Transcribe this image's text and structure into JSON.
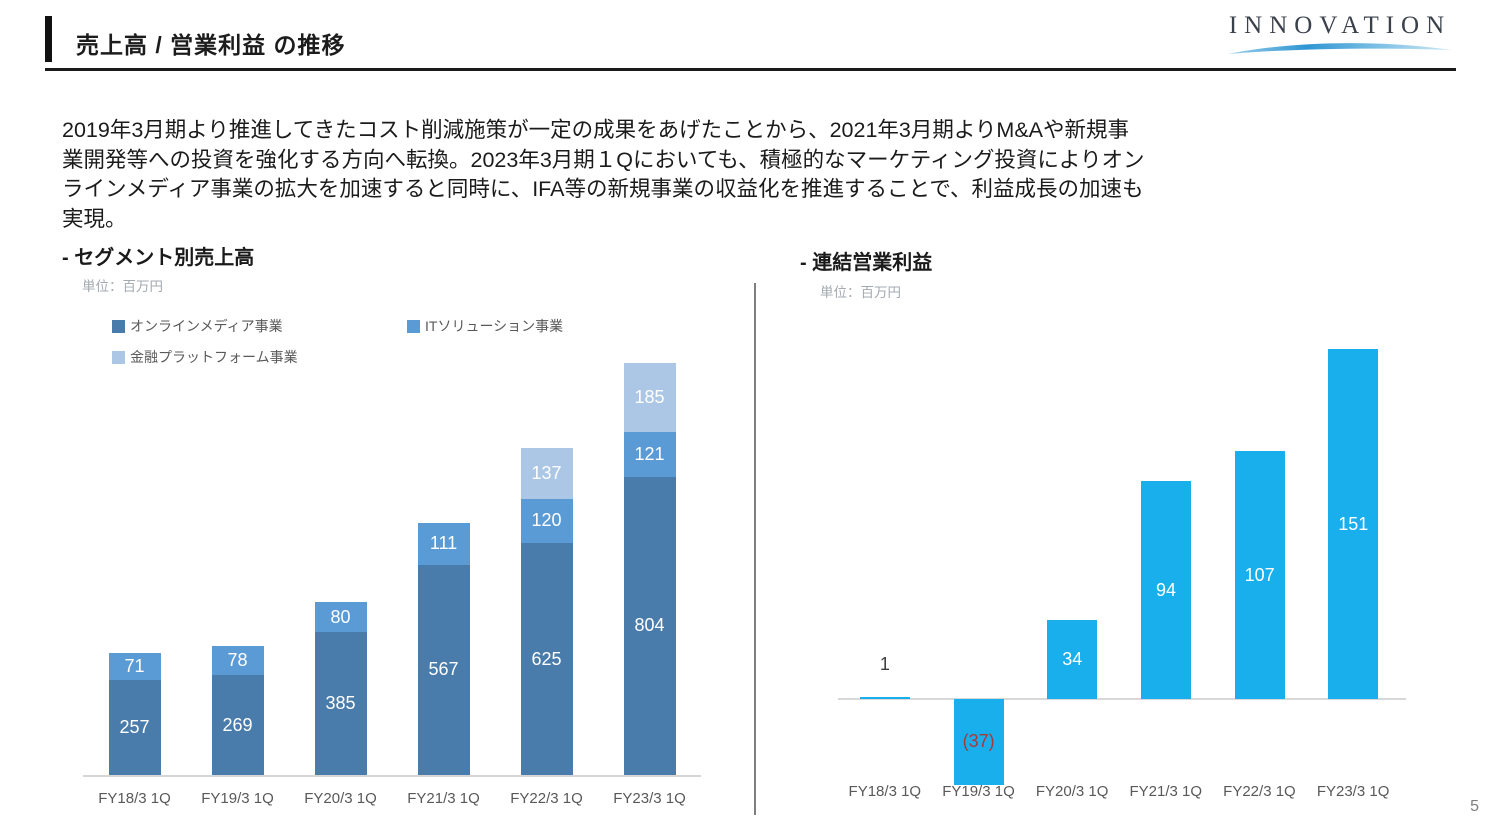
{
  "header": {
    "title": "売上高 / 営業利益 の推移",
    "logo_text": "INNOVATION"
  },
  "intro": {
    "lines": [
      "2019年3月期より推進してきたコスト削減施策が一定の成果をあげたことから、2021年3月期よりM&Aや新規事",
      "業開発等への投資を強化する方向へ転換。2023年3月期１Qにおいても、積極的なマーケティング投資によりオン",
      "ラインメディア事業の拡大を加速すると同時に、IFA等の新規事業の収益化を推進することで、利益成長の加速も",
      "実現。"
    ]
  },
  "footer": {
    "page_number": "5"
  },
  "chart_data": [
    {
      "type": "bar",
      "variant": "stacked",
      "title": "- セグメント別売上高",
      "unit_label": "単位：百万円",
      "categories": [
        "FY18/3 1Q",
        "FY19/3 1Q",
        "FY20/3 1Q",
        "FY21/3 1Q",
        "FY22/3 1Q",
        "FY23/3 1Q"
      ],
      "series": [
        {
          "name": "オンラインメディア事業",
          "color": "#4A7CAB",
          "values": [
            257,
            269,
            385,
            567,
            625,
            804
          ]
        },
        {
          "name": "ITソリューション事業",
          "color": "#5B9BD5",
          "values": [
            71,
            78,
            80,
            111,
            120,
            121
          ]
        },
        {
          "name": "金融プラットフォーム事業",
          "color": "#ACC7E5",
          "values": [
            null,
            null,
            null,
            null,
            137,
            185
          ]
        }
      ],
      "totals": [
        328,
        347,
        465,
        678,
        882,
        1110
      ],
      "ylim": [
        0,
        1110
      ],
      "grid": false,
      "legend_position": "top-left",
      "value_label_color": "#FFFFFF"
    },
    {
      "type": "bar",
      "variant": "single",
      "title": "- 連結営業利益",
      "unit_label": "単位：百万円",
      "categories": [
        "FY18/3 1Q",
        "FY19/3 1Q",
        "FY20/3 1Q",
        "FY21/3 1Q",
        "FY22/3 1Q",
        "FY23/3 1Q"
      ],
      "values": [
        1,
        -37,
        34,
        94,
        107,
        151
      ],
      "labels": [
        "1",
        "(37)",
        "34",
        "94",
        "107",
        "151"
      ],
      "bar_color": "#18AFEC",
      "value_label_color": "#FFFFFF",
      "outside_label_color": "#3F3F3F",
      "negative_label_color": "#A33B3D",
      "ylim": [
        -90,
        160
      ],
      "grid": false
    }
  ]
}
